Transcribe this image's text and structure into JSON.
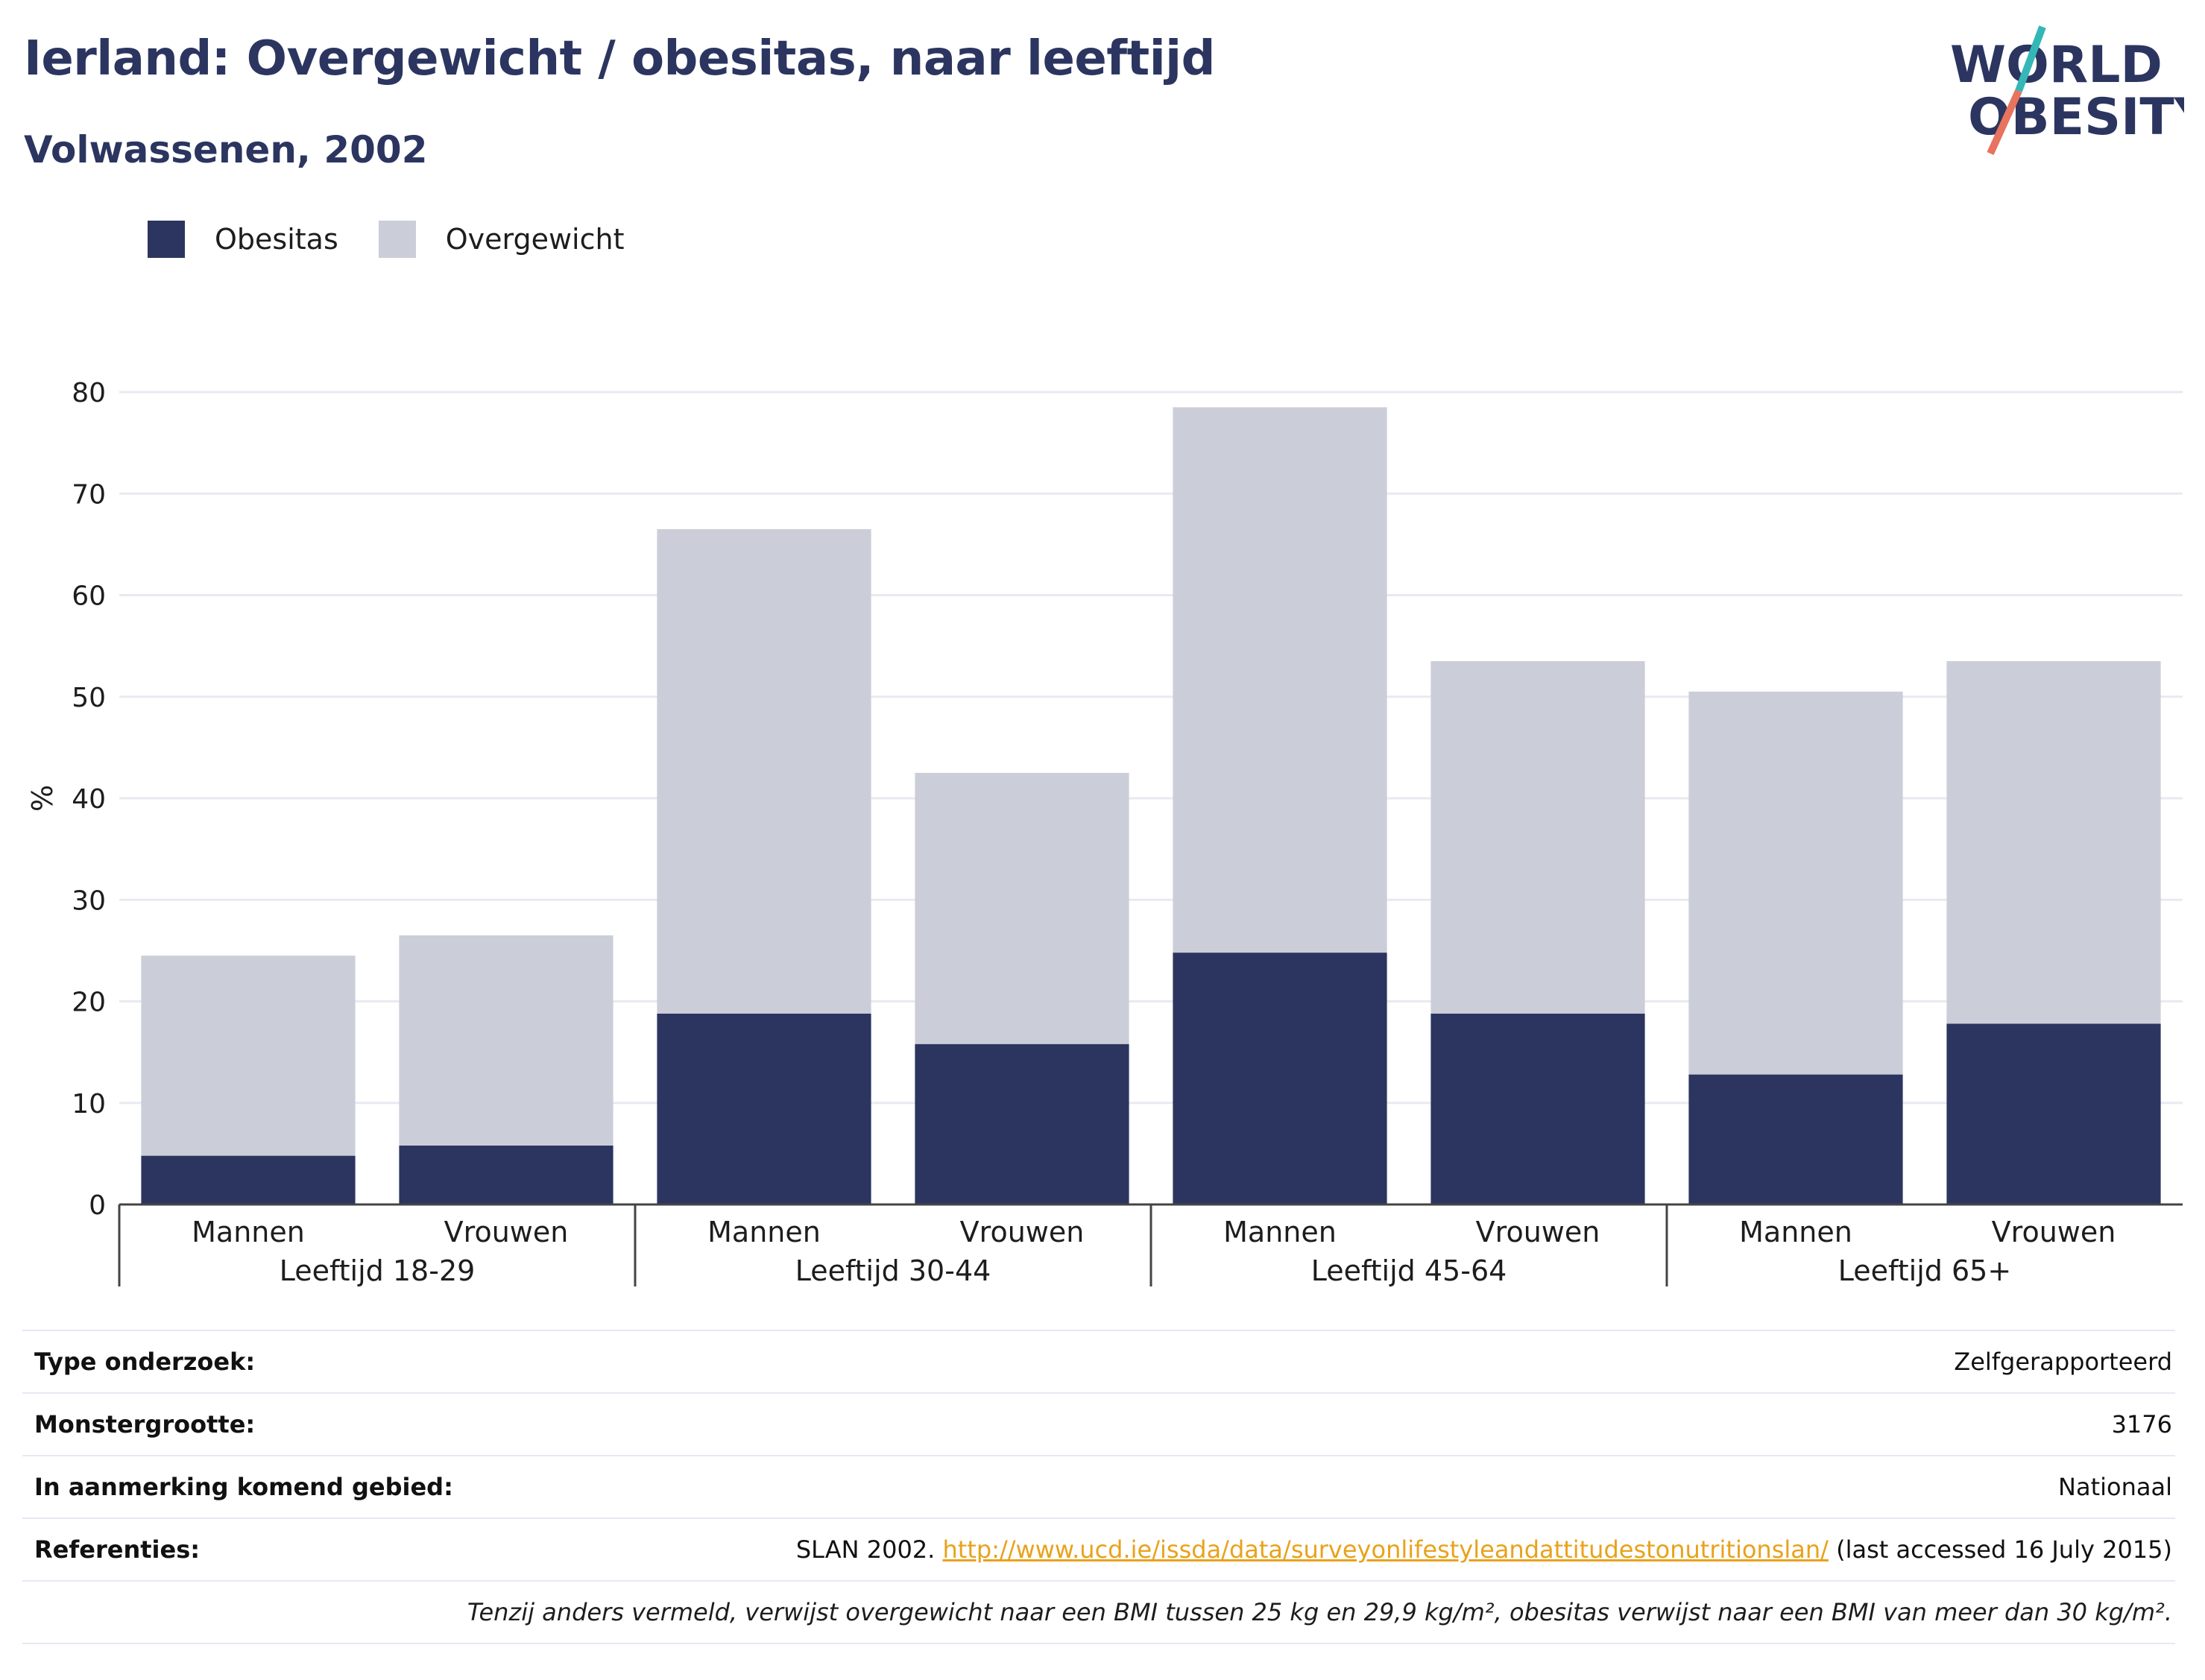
{
  "header": {
    "title": "Ierland: Overgewicht / obesitas, naar leeftijd",
    "subtitle": "Volwassenen, 2002"
  },
  "logo": {
    "line1": "WORLD",
    "line2": "OBESITY",
    "colors": {
      "text": "#2b3560",
      "slash_top": "#35b7b7",
      "slash_bottom": "#e8735e"
    }
  },
  "legend": [
    {
      "label": "Obesitas",
      "color": "#2b3560"
    },
    {
      "label": "Overgewicht",
      "color": "#cbcdd9"
    }
  ],
  "chart_data": {
    "type": "bar",
    "stacked": true,
    "categories": [
      "Mannen",
      "Vrouwen",
      "Mannen",
      "Vrouwen",
      "Mannen",
      "Vrouwen",
      "Mannen",
      "Vrouwen"
    ],
    "groups": [
      "Leeftijd 18-29",
      "Leeftijd 30-44",
      "Leeftijd 45-64",
      "Leeftijd 65+"
    ],
    "series": [
      {
        "name": "Obesitas",
        "color": "#2b3560",
        "values": [
          4.8,
          5.8,
          18.8,
          15.8,
          24.8,
          18.8,
          12.8,
          17.8
        ]
      },
      {
        "name": "Overgewicht",
        "color": "#cbcdd9",
        "values": [
          19.7,
          20.7,
          47.7,
          26.7,
          53.7,
          34.7,
          37.7,
          35.7
        ]
      }
    ],
    "ylabel": "%",
    "xlabel": "",
    "ylim": [
      0,
      80
    ],
    "yticks": [
      "0",
      "10",
      "20",
      "30",
      "40",
      "50",
      "60",
      "70",
      "80"
    ],
    "grid": true,
    "legend_position": "top-left"
  },
  "info": {
    "survey_type_label": "Type onderzoek:",
    "survey_type_value": "Zelfgerapporteerd",
    "sample_size_label": "Monstergrootte:",
    "sample_size_value": "3176",
    "area_label": "In aanmerking komend gebied:",
    "area_value": "Nationaal",
    "references_label": "Referenties:",
    "references_prefix": "SLAN 2002.",
    "references_link": "http://www.ucd.ie/issda/data/surveyonlifestyleandattitudestonutritionslan/",
    "references_suffix": "(last accessed 16 July 2015)",
    "footnote": "Tenzij anders vermeld, verwijst overgewicht naar een BMI tussen 25 kg en 29,9 kg/m², obesitas verwijst naar een BMI van meer dan 30 kg/m²."
  }
}
